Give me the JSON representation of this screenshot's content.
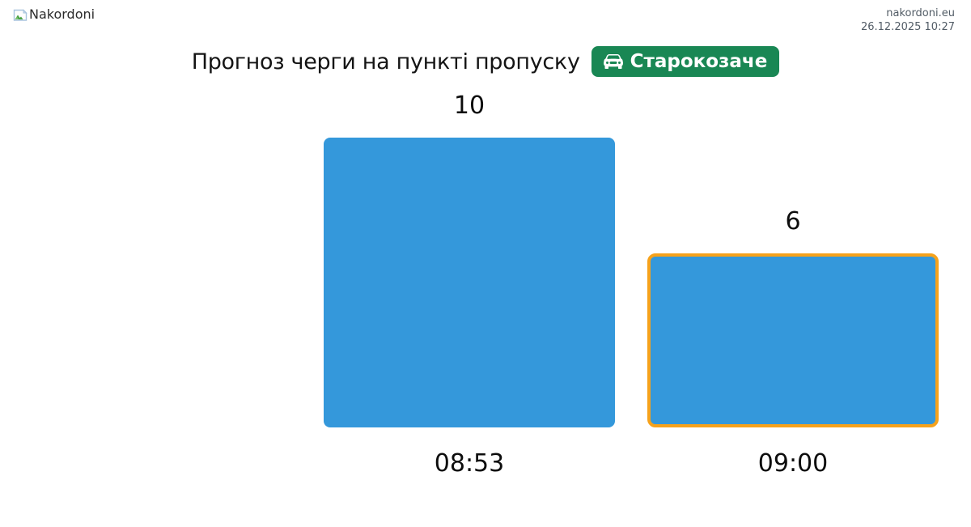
{
  "header": {
    "logo_alt": "Nakordoni",
    "site_url": "nakordoni.eu",
    "timestamp": "26.12.2025 10:27"
  },
  "title": {
    "text": "Прогноз черги на пункті пропуску",
    "badge_label": "Старокозаче",
    "badge_color": "#198754"
  },
  "chart_data": {
    "type": "bar",
    "title": "Прогноз черги на пункті пропуску",
    "categories": [
      "08:53",
      "09:00"
    ],
    "values": [
      10,
      6
    ],
    "xlabel": "",
    "ylabel": "",
    "ylim": [
      0,
      10
    ],
    "grid": false,
    "legend": false,
    "value_labels_shown": true,
    "bar_color": "#3498db",
    "highlighted_bar": {
      "index": 1,
      "border_color": "#f6a21b",
      "border_width_px": 4
    }
  }
}
